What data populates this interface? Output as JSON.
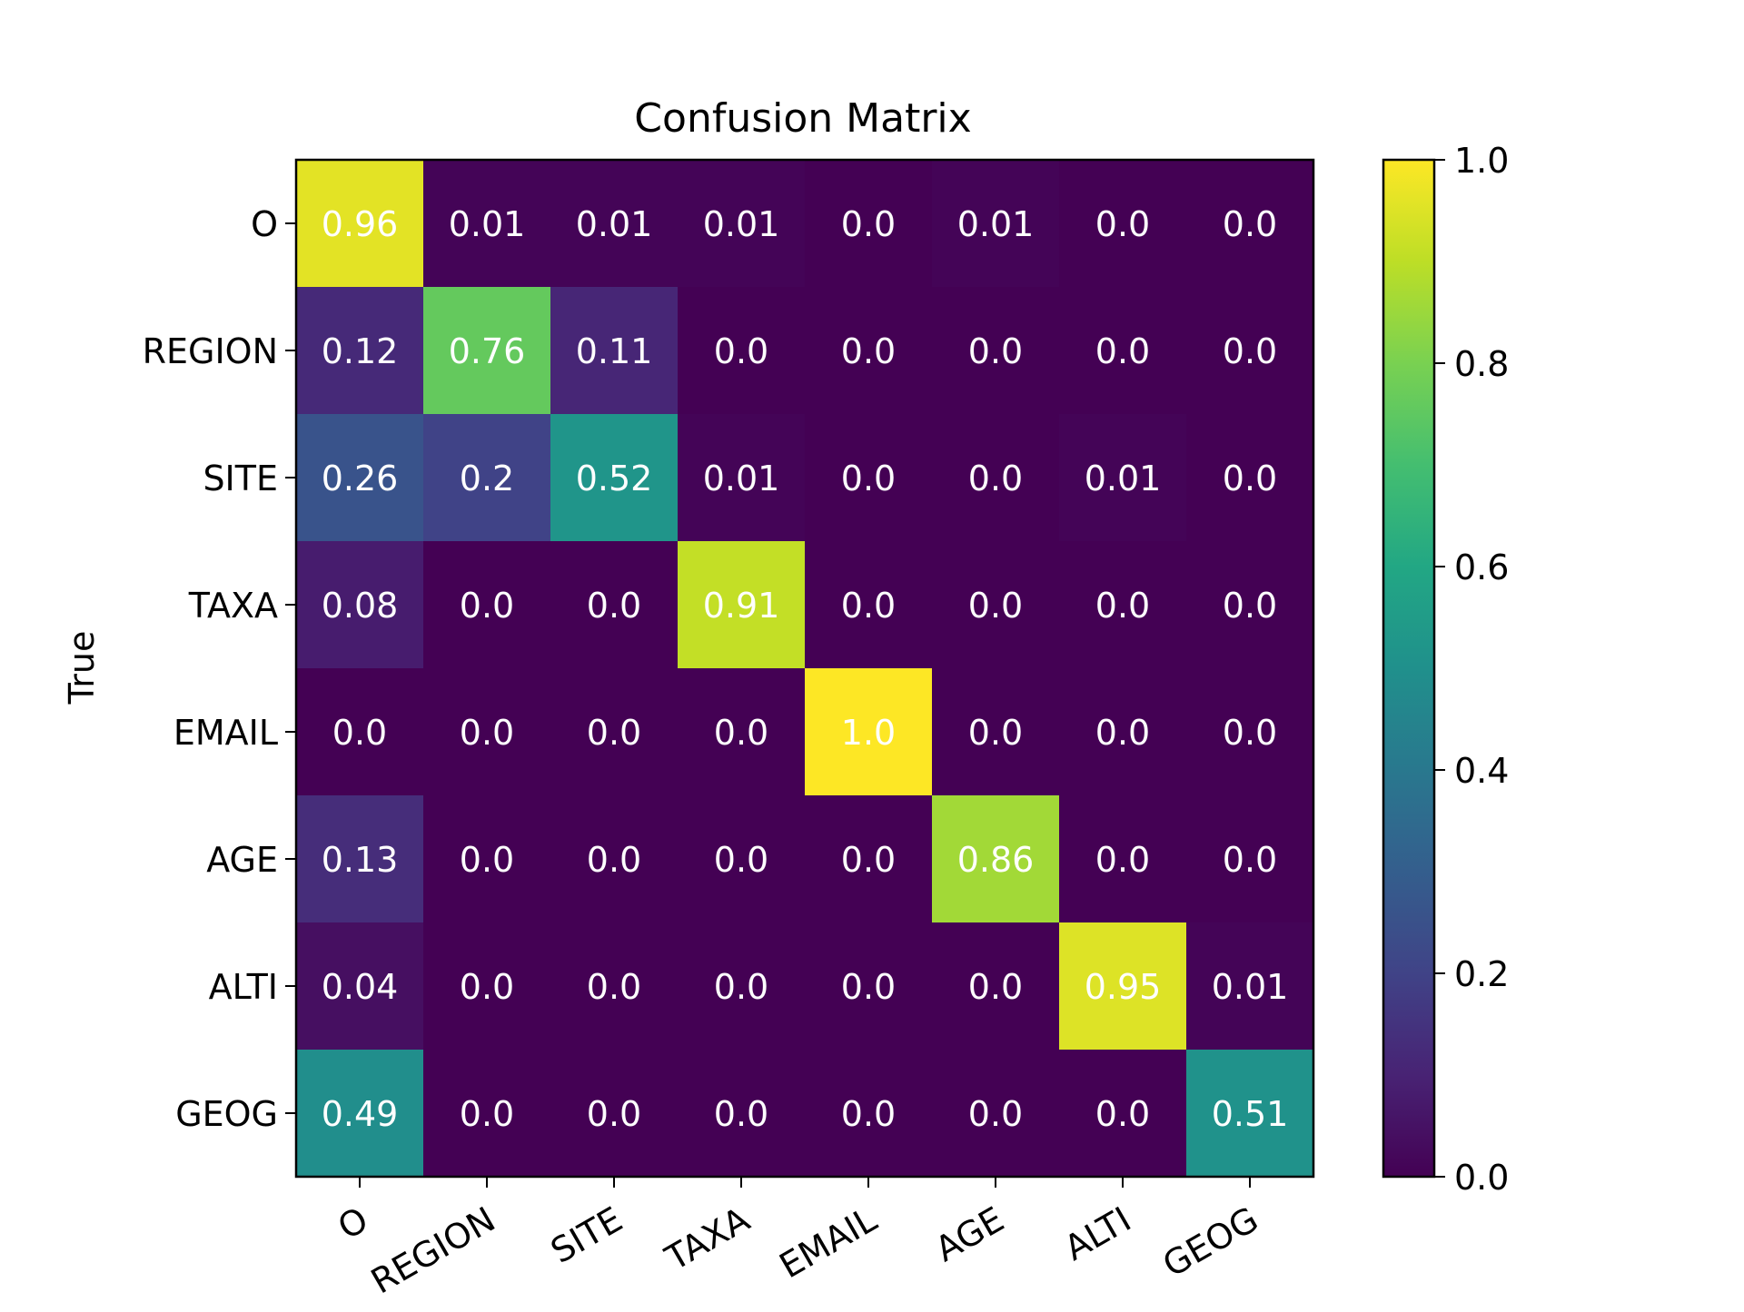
{
  "chart_data": {
    "type": "heatmap",
    "title": "Confusion Matrix",
    "xlabel": "",
    "ylabel": "True",
    "x_categories": [
      "O",
      "REGION",
      "SITE",
      "TAXA",
      "EMAIL",
      "AGE",
      "ALTI",
      "GEOG"
    ],
    "y_categories": [
      "O",
      "REGION",
      "SITE",
      "TAXA",
      "EMAIL",
      "AGE",
      "ALTI",
      "GEOG"
    ],
    "values": [
      [
        0.96,
        0.01,
        0.01,
        0.01,
        0.0,
        0.01,
        0.0,
        0.0
      ],
      [
        0.12,
        0.76,
        0.11,
        0.0,
        0.0,
        0.0,
        0.0,
        0.0
      ],
      [
        0.26,
        0.2,
        0.52,
        0.01,
        0.0,
        0.0,
        0.01,
        0.0
      ],
      [
        0.08,
        0.0,
        0.0,
        0.91,
        0.0,
        0.0,
        0.0,
        0.0
      ],
      [
        0.0,
        0.0,
        0.0,
        0.0,
        1.0,
        0.0,
        0.0,
        0.0
      ],
      [
        0.13,
        0.0,
        0.0,
        0.0,
        0.0,
        0.86,
        0.0,
        0.0
      ],
      [
        0.04,
        0.0,
        0.0,
        0.0,
        0.0,
        0.0,
        0.95,
        0.01
      ],
      [
        0.49,
        0.0,
        0.0,
        0.0,
        0.0,
        0.0,
        0.0,
        0.51
      ]
    ],
    "cell_labels": [
      [
        "0.96",
        "0.01",
        "0.01",
        "0.01",
        "0.0",
        "0.01",
        "0.0",
        "0.0"
      ],
      [
        "0.12",
        "0.76",
        "0.11",
        "0.0",
        "0.0",
        "0.0",
        "0.0",
        "0.0"
      ],
      [
        "0.26",
        "0.2",
        "0.52",
        "0.01",
        "0.0",
        "0.0",
        "0.01",
        "0.0"
      ],
      [
        "0.08",
        "0.0",
        "0.0",
        "0.91",
        "0.0",
        "0.0",
        "0.0",
        "0.0"
      ],
      [
        "0.0",
        "0.0",
        "0.0",
        "0.0",
        "1.0",
        "0.0",
        "0.0",
        "0.0"
      ],
      [
        "0.13",
        "0.0",
        "0.0",
        "0.0",
        "0.0",
        "0.86",
        "0.0",
        "0.0"
      ],
      [
        "0.04",
        "0.0",
        "0.0",
        "0.0",
        "0.0",
        "0.0",
        "0.95",
        "0.01"
      ],
      [
        "0.49",
        "0.0",
        "0.0",
        "0.0",
        "0.0",
        "0.0",
        "0.0",
        "0.51"
      ]
    ],
    "colormap": "viridis",
    "vmin": 0.0,
    "vmax": 1.0,
    "colorbar_ticks": [
      "0.0",
      "0.2",
      "0.4",
      "0.6",
      "0.8",
      "1.0"
    ],
    "annotation_color": "#ffffff",
    "grid": false
  }
}
